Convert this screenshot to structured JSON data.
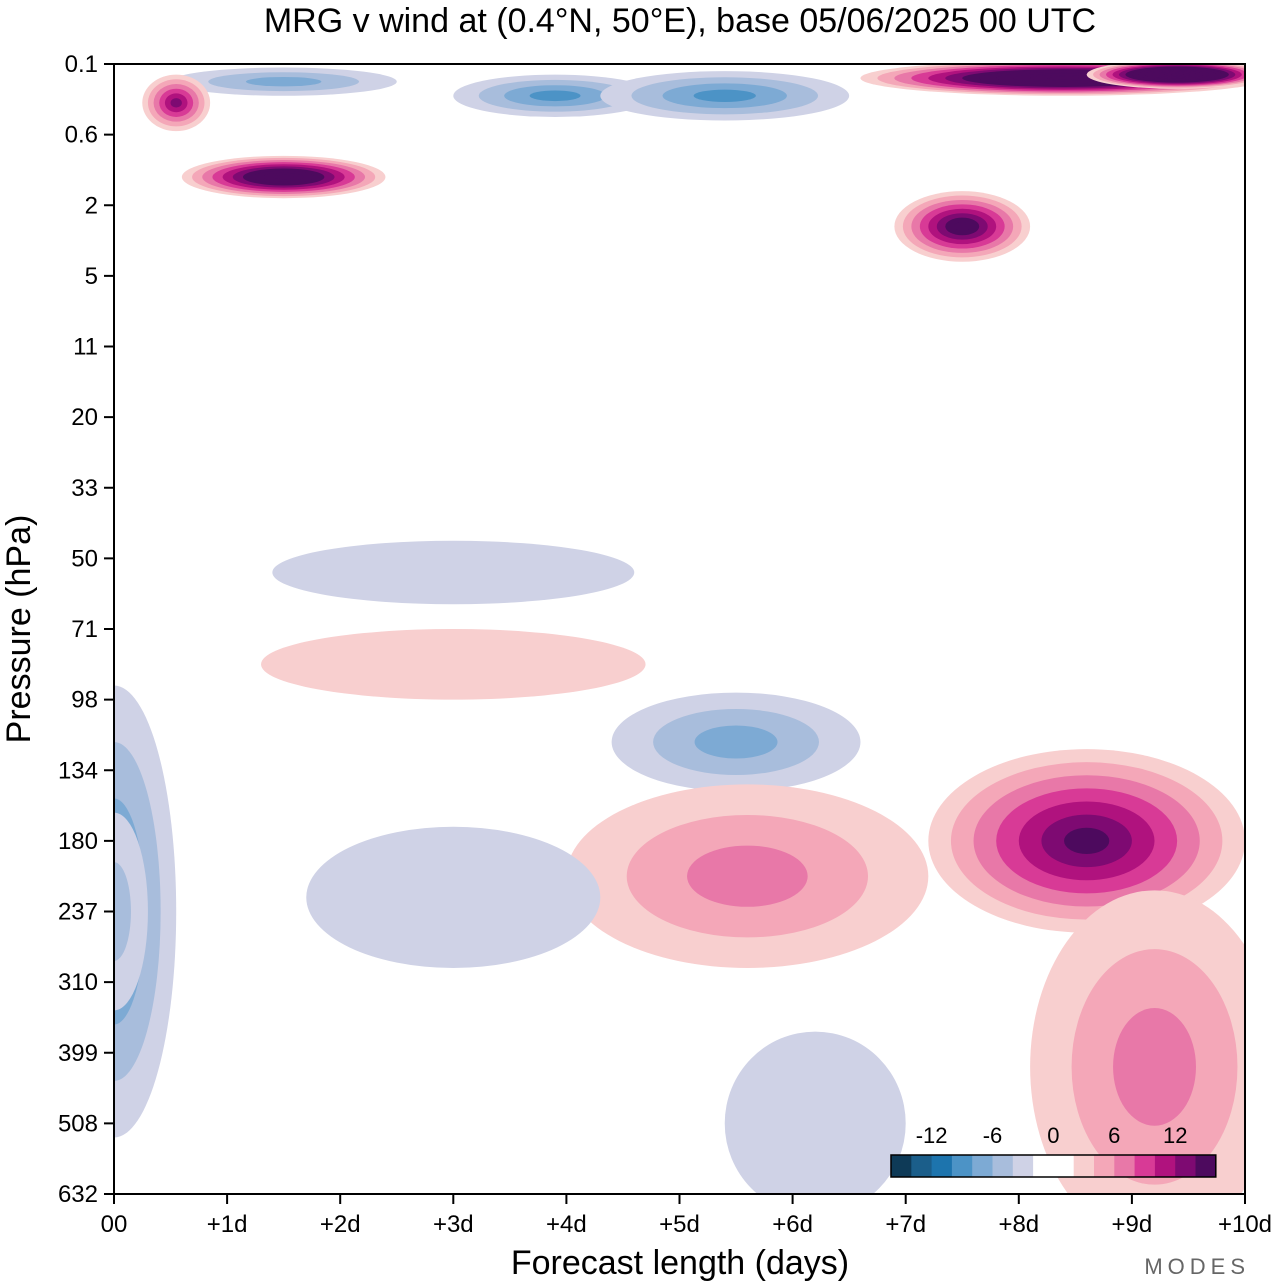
{
  "chart_data": {
    "type": "heatmap",
    "title": "MRG v wind at (0.4°N, 50°E),  base 05/06/2025  00 UTC",
    "xlabel": "Forecast length (days)",
    "ylabel": "Pressure (hPa)",
    "x_ticks": [
      "00",
      "+1d",
      "+2d",
      "+3d",
      "+4d",
      "+5d",
      "+6d",
      "+7d",
      "+8d",
      "+9d",
      "+10d"
    ],
    "y_ticks": [
      "0.1",
      "0.6",
      "2",
      "5",
      "11",
      "20",
      "33",
      "50",
      "71",
      "98",
      "134",
      "180",
      "237",
      "310",
      "399",
      "508",
      "632"
    ],
    "xlim_days": [
      0,
      10
    ],
    "y_axis_note": "pressure increases downward, nonlinear spacing",
    "colorbar": {
      "tick_labels": [
        "-12",
        "-6",
        "0",
        "6",
        "12"
      ],
      "colors": [
        "#0e3a57",
        "#1b5e8a",
        "#1d74ad",
        "#4c93c6",
        "#7daad4",
        "#a8bddc",
        "#cfd2e6",
        "#ffffff",
        "#ffffff",
        "#f8cfcf",
        "#f4a7b8",
        "#e878a8",
        "#d83a96",
        "#b0127e",
        "#7e0a72",
        "#4d0a5e"
      ]
    },
    "contour_regions": [
      {
        "x": 0.0,
        "y": 12.0,
        "rx": 0.55,
        "ry": 3.2,
        "level": -4
      },
      {
        "x": 0.0,
        "y": 12.0,
        "rx": 0.3,
        "ry": 1.4,
        "level": -2
      },
      {
        "x": 1.5,
        "y": 0.25,
        "rx": 1.0,
        "ry": 0.2,
        "level": -3
      },
      {
        "x": 3.9,
        "y": 0.45,
        "rx": 0.9,
        "ry": 0.3,
        "level": -4
      },
      {
        "x": 5.4,
        "y": 0.45,
        "rx": 1.1,
        "ry": 0.35,
        "level": -4
      },
      {
        "x": 1.5,
        "y": 1.6,
        "rx": 0.9,
        "ry": 0.3,
        "level": 10
      },
      {
        "x": 0.55,
        "y": 0.55,
        "rx": 0.3,
        "ry": 0.4,
        "level": 6
      },
      {
        "x": 8.4,
        "y": 0.2,
        "rx": 1.8,
        "ry": 0.25,
        "level": 12
      },
      {
        "x": 9.4,
        "y": 0.15,
        "rx": 0.8,
        "ry": 0.2,
        "level": 14
      },
      {
        "x": 7.5,
        "y": 2.3,
        "rx": 0.6,
        "ry": 0.5,
        "level": 8
      },
      {
        "x": 5.5,
        "y": 9.6,
        "rx": 1.1,
        "ry": 0.7,
        "level": -3
      },
      {
        "x": 8.6,
        "y": 11.0,
        "rx": 1.4,
        "ry": 1.3,
        "level": 7
      },
      {
        "x": 5.6,
        "y": 11.5,
        "rx": 1.6,
        "ry": 1.3,
        "level": 3
      },
      {
        "x": 9.2,
        "y": 14.2,
        "rx": 1.1,
        "ry": 2.5,
        "level": 3
      },
      {
        "x": 3.0,
        "y": 11.8,
        "rx": 1.3,
        "ry": 1.0,
        "level": -1
      },
      {
        "x": 6.2,
        "y": 15.0,
        "rx": 0.8,
        "ry": 1.3,
        "level": -1
      },
      {
        "x": 3.0,
        "y": 8.5,
        "rx": 1.7,
        "ry": 0.5,
        "level": 1
      },
      {
        "x": 3.0,
        "y": 7.2,
        "rx": 1.6,
        "ry": 0.45,
        "level": -1
      }
    ]
  },
  "logo_text": "MODES"
}
